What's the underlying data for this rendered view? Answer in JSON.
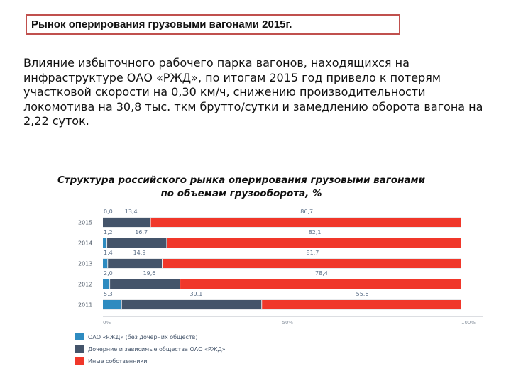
{
  "title": "Рынок оперирования грузовыми вагонами 2015г.",
  "paragraphs": [
    "Влияние избыточного рабочего парка вагонов, находящихся на инфраструктуре ОАО «РЖД», по итогам 2015 год привело к потерям участковой скорости на 0,30 км/ч, снижению производительности",
    "локомотива на 30,8 тыс. ткм брутто/сутки и замедлению оборота вагона на 2,22 суток."
  ],
  "chart_heading": [
    "Структура российского рынка оперирования грузовыми вагонами",
    "по объемам грузооборота, %"
  ],
  "chart_data": {
    "type": "bar",
    "orientation": "horizontal",
    "stacked": true,
    "title": "Структура российского рынка оперирования грузовыми вагонами по объемам грузооборота, %",
    "categories": [
      "2015",
      "2014",
      "2013",
      "2012",
      "2011"
    ],
    "series": [
      {
        "name": "ОАО «РЖД» (без дочерних обществ)",
        "color": "#2e8bc0",
        "values": [
          0.0,
          1.2,
          1.4,
          2.0,
          5.3
        ],
        "labels": [
          "0,0",
          "1,2",
          "1,4",
          "2,0",
          "5,3"
        ]
      },
      {
        "name": "Дочерние и зависимые общества ОАО «РЖД»",
        "color": "#44546a",
        "values": [
          13.4,
          16.7,
          14.9,
          19.6,
          39.1
        ],
        "labels": [
          "13,4",
          "16,7",
          "14,9",
          "19,6",
          "39,1"
        ]
      },
      {
        "name": "Иные собственники",
        "color": "#f0372a",
        "values": [
          86.7,
          82.1,
          81.7,
          78.4,
          55.6
        ],
        "labels": [
          "86,7",
          "82,1",
          "81,7",
          "78,4",
          "55,6"
        ]
      }
    ],
    "xlim": [
      0,
      100
    ],
    "x_ticks": [
      "0%",
      "50%",
      "100%"
    ],
    "legend_position": "bottom-left"
  }
}
